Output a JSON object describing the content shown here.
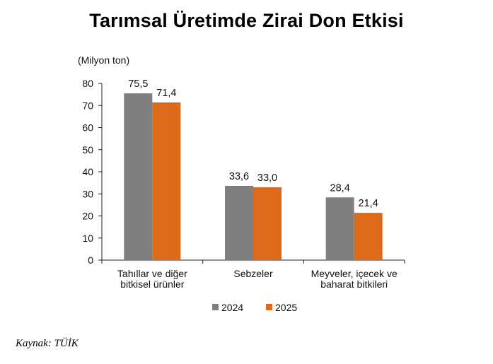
{
  "title": "Tarımsal Üretimde Zirai Don Etkisi",
  "unit_label": "(Milyon ton)",
  "source": "Kaynak: TÜİK",
  "chart_data": {
    "type": "bar",
    "categories": [
      [
        "Tahıllar ve diğer",
        "bitkisel ürünler"
      ],
      [
        "Sebzeler"
      ],
      [
        "Meyveler, içecek ve",
        "baharat bitkileri"
      ]
    ],
    "series": [
      {
        "name": "2024",
        "color": "#7f7f7f",
        "values": [
          75.5,
          33.6,
          28.4
        ],
        "labels": [
          "75,5",
          "33,6",
          "28,4"
        ]
      },
      {
        "name": "2025",
        "color": "#dd6a1a",
        "values": [
          71.4,
          33.0,
          21.4
        ],
        "labels": [
          "71,4",
          "33,0",
          "21,4"
        ]
      }
    ],
    "ylim": [
      0,
      80
    ],
    "yticks": [
      0,
      10,
      20,
      30,
      40,
      50,
      60,
      70,
      80
    ],
    "ylabel": "(Milyon ton)",
    "legend": "bottom",
    "grid": false
  }
}
